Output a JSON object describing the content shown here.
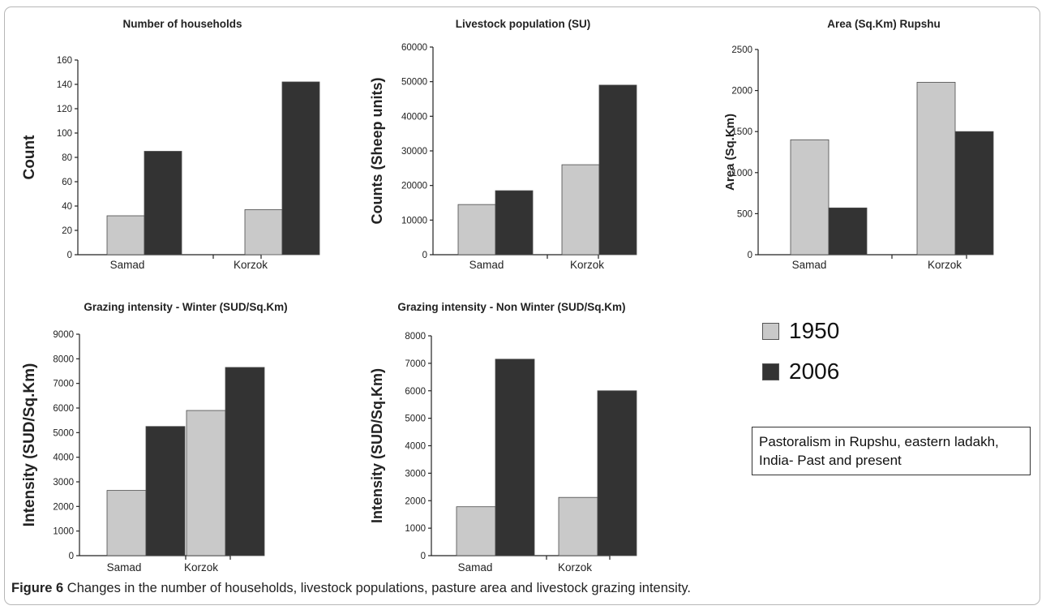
{
  "colors": {
    "y1950": "#c9c9c9",
    "y2006": "#333333"
  },
  "legend": {
    "items": [
      {
        "label": "1950",
        "color": "#c9c9c9"
      },
      {
        "label": "2006",
        "color": "#333333"
      }
    ]
  },
  "note": {
    "text": "Pastoralism in Rupshu, eastern ladakh, India- Past and present"
  },
  "caption": {
    "label": "Figure 6",
    "text": "Changes in the number of households, livestock populations, pasture area and livestock grazing intensity."
  },
  "chart_data": [
    {
      "type": "bar",
      "title": "Number of households",
      "ylabel": "Count",
      "categories": [
        "Samad",
        "Korzok"
      ],
      "ylim": [
        0,
        160
      ],
      "yticks": [
        "0",
        "20",
        "40",
        "60",
        "80",
        "100",
        "120",
        "140",
        "160"
      ],
      "series": [
        {
          "name": "1950",
          "values": [
            32,
            37
          ]
        },
        {
          "name": "2006",
          "values": [
            85,
            142
          ]
        }
      ]
    },
    {
      "type": "bar",
      "title": "Livestock population (SU)",
      "ylabel": "Counts (Sheep units)",
      "categories": [
        "Samad",
        "Korzok"
      ],
      "ylim": [
        0,
        60000
      ],
      "yticks": [
        "0",
        "10000",
        "20000",
        "30000",
        "40000",
        "50000",
        "60000"
      ],
      "series": [
        {
          "name": "1950",
          "values": [
            14500,
            26000
          ]
        },
        {
          "name": "2006",
          "values": [
            18500,
            49000
          ]
        }
      ]
    },
    {
      "type": "bar",
      "title": "Area (Sq.Km) Rupshu",
      "ylabel": "Area (Sq.Km)",
      "categories": [
        "Samad",
        "Korzok"
      ],
      "ylim": [
        0,
        2500
      ],
      "yticks": [
        "0",
        "500",
        "1000",
        "1500",
        "2000",
        "2500"
      ],
      "series": [
        {
          "name": "1950",
          "values": [
            1400,
            2100
          ]
        },
        {
          "name": "2006",
          "values": [
            570,
            1500
          ]
        }
      ]
    },
    {
      "type": "bar",
      "title": "Grazing intensity - Winter (SUD/Sq.Km)",
      "ylabel": "Intensity (SUD/Sq.Km)",
      "categories": [
        "Samad",
        "Korzok"
      ],
      "ylim": [
        0,
        9000
      ],
      "yticks": [
        "0",
        "1000",
        "2000",
        "3000",
        "4000",
        "5000",
        "6000",
        "7000",
        "8000",
        "9000"
      ],
      "series": [
        {
          "name": "1950",
          "values": [
            2650,
            5900
          ]
        },
        {
          "name": "2006",
          "values": [
            5250,
            7650
          ]
        }
      ]
    },
    {
      "type": "bar",
      "title": "Grazing intensity - Non Winter (SUD/Sq.Km)",
      "ylabel": "Intensity (SUD/Sq.Km)",
      "categories": [
        "Samad",
        "Korzok"
      ],
      "ylim": [
        0,
        8000
      ],
      "yticks": [
        "0",
        "1000",
        "2000",
        "3000",
        "4000",
        "5000",
        "6000",
        "7000",
        "8000"
      ],
      "series": [
        {
          "name": "1950",
          "values": [
            1780,
            2120
          ]
        },
        {
          "name": "2006",
          "values": [
            7150,
            6000
          ]
        }
      ]
    }
  ]
}
